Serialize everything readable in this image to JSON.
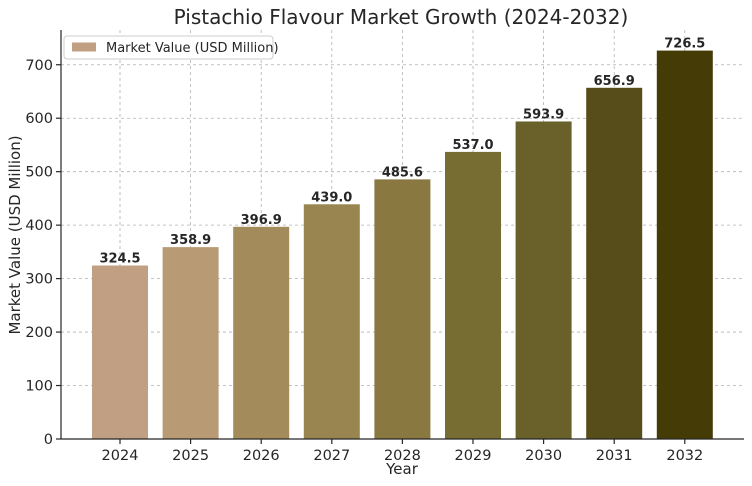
{
  "chart_data": {
    "type": "bar",
    "title": "Pistachio Flavour Market Growth (2024-2032)",
    "xlabel": "Year",
    "ylabel": "Market Value (USD Million)",
    "categories": [
      "2024",
      "2025",
      "2026",
      "2027",
      "2028",
      "2029",
      "2030",
      "2031",
      "2032"
    ],
    "series": [
      {
        "name": "Market Value (USD Million)",
        "values": [
          324.5,
          358.9,
          396.9,
          439.0,
          485.6,
          537.0,
          593.9,
          656.9,
          726.5
        ],
        "value_labels": [
          "324.5",
          "358.9",
          "396.9",
          "439.0",
          "485.6",
          "537.0",
          "593.9",
          "656.9",
          "726.5"
        ]
      }
    ],
    "ylim": [
      0,
      765
    ],
    "yticks": [
      "0",
      "100",
      "200",
      "300",
      "400",
      "500",
      "600",
      "700"
    ],
    "grid": true,
    "legend_position": "top-left",
    "bar_colors": [
      "#c19f83",
      "#b89a74",
      "#a48b5c",
      "#98854f",
      "#89783f",
      "#776d33",
      "#69602a",
      "#574d1a",
      "#453b06"
    ],
    "legend_color": "#c19f83"
  }
}
